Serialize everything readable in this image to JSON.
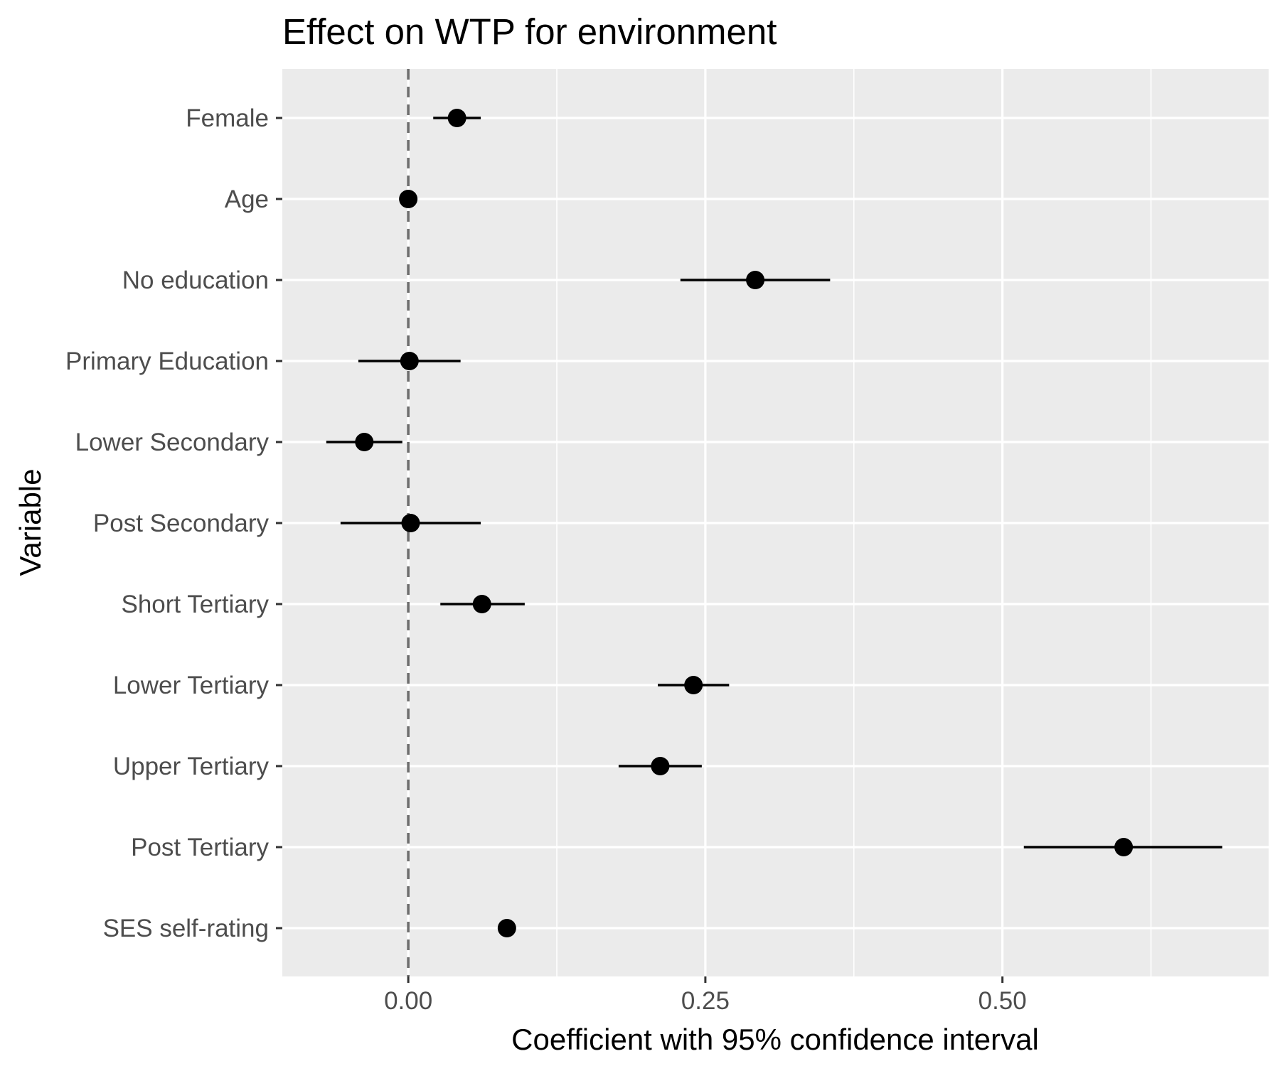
{
  "chart_data": {
    "type": "scatter",
    "subtype": "coefficient-plot",
    "title": "Effect on WTP for environment",
    "xlabel": "Coefficient with 95% confidence interval",
    "ylabel": "Variable",
    "xlim": [
      -0.106,
      0.724
    ],
    "x_ticks": [
      0.0,
      0.25,
      0.5
    ],
    "x_tick_labels": [
      "0.00",
      "0.25",
      "0.50"
    ],
    "x_minor_ticks": [
      0.125,
      0.375,
      0.625
    ],
    "reference_line": {
      "x": 0,
      "style": "dashed",
      "color": "#6e6e6e"
    },
    "grid": true,
    "panel_background": "#ebebeb",
    "point_color": "#000000",
    "categories": [
      "Female",
      "Age",
      "No education",
      "Primary Education",
      "Lower Secondary",
      "Post Secondary",
      "Short Tertiary",
      "Lower Tertiary",
      "Upper Tertiary",
      "Post Tertiary",
      "SES self-rating"
    ],
    "estimates": [
      0.041,
      0.0,
      0.292,
      0.001,
      -0.037,
      0.002,
      0.062,
      0.24,
      0.212,
      0.602,
      0.083
    ],
    "ci_lower": [
      0.021,
      0.0,
      0.229,
      -0.042,
      -0.069,
      -0.057,
      0.027,
      0.21,
      0.177,
      0.518,
      0.083
    ],
    "ci_upper": [
      0.061,
      0.0,
      0.355,
      0.044,
      -0.005,
      0.061,
      0.098,
      0.27,
      0.247,
      0.685,
      0.083
    ]
  }
}
